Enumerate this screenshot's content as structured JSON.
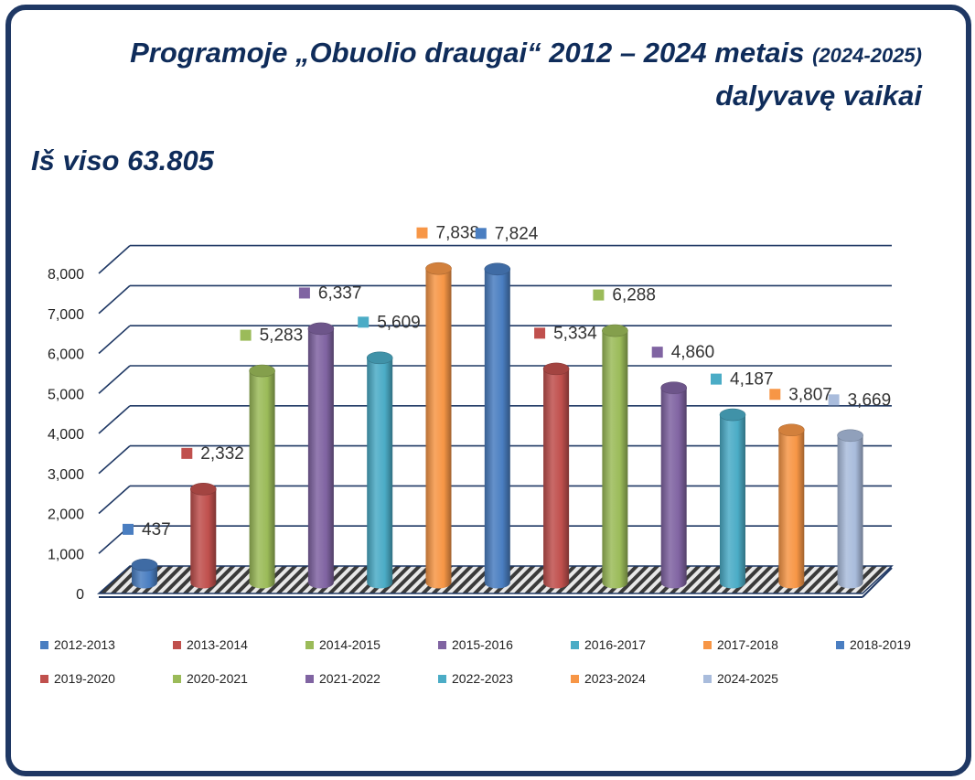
{
  "title": {
    "line1_main": "Programoje „Obuolio draugai“ 2012 – 2024 metais",
    "line1_small": "(2024-2025)",
    "line2": "dalyvavę vaikai"
  },
  "total_label": "Iš viso 63.805",
  "chart_data": {
    "type": "bar",
    "categories": [
      "2012-2013",
      "2013-2014",
      "2014-2015",
      "2015-2016",
      "2016-2017",
      "2017-2018",
      "2018-2019",
      "2019-2020",
      "2020-2021",
      "2021-2022",
      "2022-2023",
      "2023-2024",
      "2024-2025"
    ],
    "values": [
      437,
      2332,
      5283,
      6337,
      5609,
      7838,
      7824,
      5334,
      6288,
      4860,
      4187,
      3807,
      3669
    ],
    "value_labels": [
      "437",
      "2,332",
      "5,283",
      "6,337",
      "5,609",
      "7,838",
      "7,824",
      "5,334",
      "6,288",
      "4,860",
      "4,187",
      "3,807",
      "3,669"
    ],
    "colors": [
      "#4a7ec1",
      "#c0504d",
      "#9bbb59",
      "#8064a2",
      "#4bacc6",
      "#f79646",
      "#4a7ec1",
      "#c0504d",
      "#9bbb59",
      "#8064a2",
      "#4bacc6",
      "#f79646",
      "#a9bcdc"
    ],
    "ylim": [
      0,
      8000
    ],
    "yticks": [
      "0",
      "1,000",
      "2,000",
      "3,000",
      "4,000",
      "5,000",
      "6,000",
      "7,000",
      "8,000"
    ],
    "legend_position": "bottom",
    "grid": true
  }
}
